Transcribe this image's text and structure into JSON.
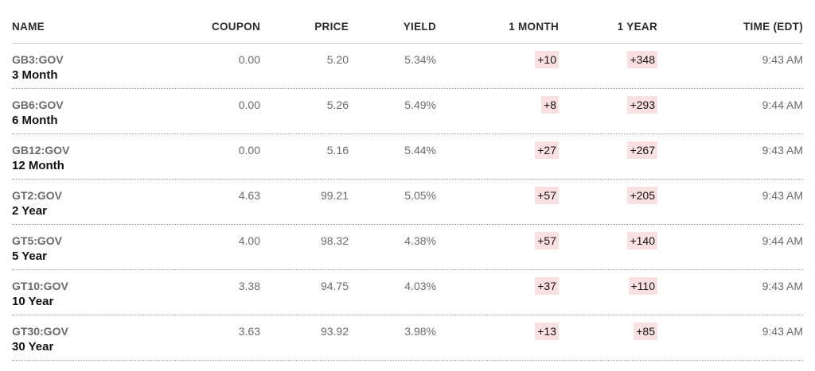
{
  "headers": {
    "name": "NAME",
    "coupon": "COUPON",
    "price": "PRICE",
    "yield": "YIELD",
    "one_month": "1 MONTH",
    "one_year": "1 YEAR",
    "time": "TIME (EDT)"
  },
  "rows": [
    {
      "ticker": "GB3:GOV",
      "label": "3 Month",
      "coupon": "0.00",
      "price": "5.20",
      "yield": "5.34%",
      "one_month": "+10",
      "one_year": "+348",
      "time": "9:43 AM"
    },
    {
      "ticker": "GB6:GOV",
      "label": "6 Month",
      "coupon": "0.00",
      "price": "5.26",
      "yield": "5.49%",
      "one_month": "+8",
      "one_year": "+293",
      "time": "9:44 AM"
    },
    {
      "ticker": "GB12:GOV",
      "label": "12 Month",
      "coupon": "0.00",
      "price": "5.16",
      "yield": "5.44%",
      "one_month": "+27",
      "one_year": "+267",
      "time": "9:43 AM"
    },
    {
      "ticker": "GT2:GOV",
      "label": "2 Year",
      "coupon": "4.63",
      "price": "99.21",
      "yield": "5.05%",
      "one_month": "+57",
      "one_year": "+205",
      "time": "9:43 AM"
    },
    {
      "ticker": "GT5:GOV",
      "label": "5 Year",
      "coupon": "4.00",
      "price": "98.32",
      "yield": "4.38%",
      "one_month": "+57",
      "one_year": "+140",
      "time": "9:44 AM"
    },
    {
      "ticker": "GT10:GOV",
      "label": "10 Year",
      "coupon": "3.38",
      "price": "94.75",
      "yield": "4.03%",
      "one_month": "+37",
      "one_year": "+110",
      "time": "9:43 AM"
    },
    {
      "ticker": "GT30:GOV",
      "label": "30 Year",
      "coupon": "3.63",
      "price": "93.92",
      "yield": "3.98%",
      "one_month": "+13",
      "one_year": "+85",
      "time": "9:43 AM"
    }
  ],
  "colors": {
    "change_positive_bg": "#fbe0e1"
  }
}
